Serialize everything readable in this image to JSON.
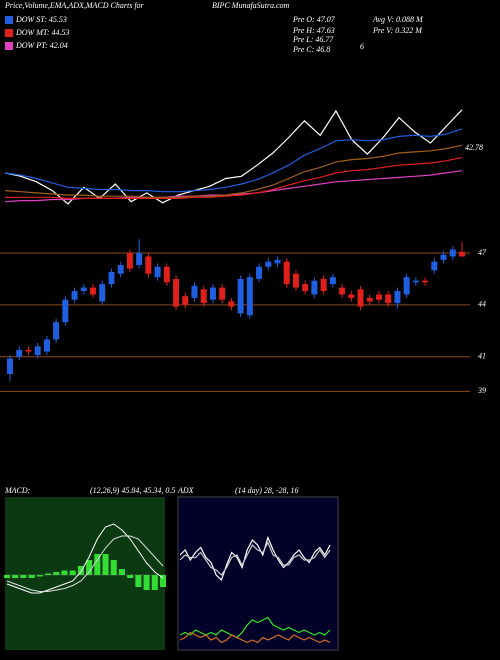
{
  "chart_data": [
    {
      "type": "line",
      "title": "Price,Volume,EMA,ADX,MACD Charts for",
      "subtitle": "BIPC MunafaSutra.com",
      "legend": [
        {
          "label": "DOW ST: 45.53",
          "color": "#1f5fe0"
        },
        {
          "label": "DOW MT: 44.53",
          "color": "#e0201b"
        },
        {
          "label": "DOW PT: 42.04",
          "color": "#e040c0"
        }
      ],
      "stats": [
        "Pre O: 47.07",
        "Pre H: 47.63",
        "Pre L: 46.77",
        "Pre C: 46.8",
        "Avg V: 0.088 M",
        "Pre V: 0.322 M",
        "6"
      ],
      "annotation": "42.78",
      "ylim": [
        35,
        49
      ],
      "series": [
        {
          "name": "Price",
          "color": "#ffffff",
          "values": [
            38.8,
            38.5,
            38.0,
            37.2,
            36.0,
            37.5,
            36.5,
            37.8,
            36.2,
            37.0,
            36.1,
            36.8,
            37.2,
            37.6,
            38.3,
            38.5,
            39.5,
            40.6,
            42.0,
            43.5,
            42.2,
            44.4,
            41.8,
            40.5,
            42.0,
            43.8,
            42.5,
            41.5,
            43.0,
            44.5
          ]
        },
        {
          "name": "EMA pink",
          "color": "#e040c0",
          "values": [
            36.2,
            36.3,
            36.3,
            36.4,
            36.4,
            36.5,
            36.5,
            36.5,
            36.6,
            36.6,
            36.6,
            36.7,
            36.7,
            36.8,
            36.8,
            36.9,
            37.0,
            37.2,
            37.4,
            37.6,
            37.8,
            38.0,
            38.1,
            38.2,
            38.3,
            38.4,
            38.5,
            38.6,
            38.8,
            39.0
          ]
        },
        {
          "name": "EMA red",
          "color": "#e0201b",
          "values": [
            36.6,
            36.6,
            36.6,
            36.6,
            36.5,
            36.5,
            36.5,
            36.5,
            36.5,
            36.5,
            36.5,
            36.5,
            36.6,
            36.6,
            36.7,
            36.8,
            37.0,
            37.3,
            37.7,
            38.1,
            38.4,
            38.8,
            39.0,
            39.1,
            39.3,
            39.5,
            39.6,
            39.7,
            39.9,
            40.2
          ]
        },
        {
          "name": "EMA brown",
          "color": "#a0601a",
          "values": [
            37.2,
            37.1,
            37.0,
            36.9,
            36.8,
            36.8,
            36.7,
            36.7,
            36.7,
            36.6,
            36.6,
            36.6,
            36.7,
            36.7,
            36.8,
            37.0,
            37.3,
            37.7,
            38.3,
            38.9,
            39.3,
            39.8,
            40.0,
            40.1,
            40.3,
            40.6,
            40.7,
            40.8,
            41.0,
            41.3
          ]
        },
        {
          "name": "EMA blue",
          "color": "#1f5fe0",
          "values": [
            38.8,
            38.6,
            38.3,
            37.9,
            37.5,
            37.4,
            37.3,
            37.3,
            37.2,
            37.2,
            37.1,
            37.1,
            37.2,
            37.3,
            37.5,
            37.8,
            38.2,
            38.8,
            39.5,
            40.4,
            41.0,
            41.7,
            41.8,
            41.7,
            41.8,
            42.1,
            42.2,
            42.1,
            42.3,
            42.78
          ]
        }
      ]
    },
    {
      "type": "candlestick",
      "up_color": "#1f5fe0",
      "down_color": "#e0201b",
      "grid_color": "#8b4a1a",
      "ylim": [
        38.5,
        47.75
      ],
      "yticks": [
        47,
        44,
        41,
        39
      ],
      "open": [
        40.0,
        41.0,
        41.4,
        41.1,
        41.3,
        42.0,
        43.0,
        44.3,
        44.8,
        45.0,
        44.2,
        45.2,
        45.8,
        47.0,
        46.3,
        46.8,
        45.6,
        46.2,
        45.5,
        44.5,
        44.4,
        44.9,
        44.3,
        45.0,
        44.2,
        43.5,
        43.4,
        45.5,
        46.2,
        46.4,
        46.5,
        45.8,
        45.2,
        44.6,
        45.5,
        45.2,
        45.0,
        44.6,
        44.9,
        44.4,
        44.6,
        44.6,
        44.1,
        44.6,
        45.3,
        45.4,
        46.0,
        46.6,
        46.8,
        47.07
      ],
      "high": [
        41.1,
        41.6,
        41.6,
        41.8,
        42.2,
        43.2,
        44.5,
        45.0,
        45.2,
        45.2,
        45.4,
        46.1,
        46.5,
        47.2,
        47.8,
        47.0,
        46.4,
        46.4,
        45.7,
        44.7,
        45.3,
        45.1,
        45.2,
        45.2,
        44.4,
        45.7,
        45.8,
        46.4,
        46.7,
        46.8,
        46.7,
        46.0,
        45.4,
        45.6,
        45.7,
        45.8,
        45.2,
        44.8,
        45.1,
        44.6,
        44.8,
        44.8,
        45.0,
        45.8,
        45.6,
        45.6,
        46.7,
        47.1,
        47.4,
        47.63
      ],
      "low": [
        39.6,
        40.8,
        41.1,
        40.9,
        41.1,
        41.8,
        42.8,
        44.1,
        44.6,
        44.4,
        44.0,
        45.0,
        45.6,
        45.9,
        46.1,
        45.6,
        45.4,
        45.1,
        43.7,
        43.8,
        44.2,
        43.9,
        44.1,
        44.1,
        43.7,
        43.3,
        43.2,
        45.3,
        46.0,
        46.2,
        45.0,
        44.8,
        44.6,
        44.4,
        44.6,
        45.0,
        44.4,
        44.2,
        43.7,
        44.0,
        44.1,
        43.9,
        43.8,
        44.4,
        45.1,
        45.1,
        45.8,
        46.4,
        46.6,
        46.77
      ],
      "close": [
        40.9,
        41.4,
        41.3,
        41.6,
        42.0,
        43.0,
        44.3,
        44.8,
        45.0,
        44.6,
        45.2,
        45.9,
        46.3,
        46.1,
        47.0,
        45.8,
        46.2,
        45.3,
        43.9,
        44.0,
        45.1,
        44.1,
        45.0,
        44.3,
        43.9,
        45.5,
        45.6,
        46.2,
        46.5,
        46.6,
        45.2,
        45.0,
        44.8,
        45.4,
        44.8,
        45.6,
        44.6,
        44.4,
        43.9,
        44.2,
        44.3,
        44.1,
        44.8,
        45.6,
        45.4,
        45.3,
        46.5,
        46.9,
        47.2,
        46.8
      ]
    },
    {
      "type": "macd",
      "title": "MACD:",
      "subtitle": "(12,26,9) 45.84, 45.34, 0.5",
      "ylim": [
        -2.5,
        2.5
      ],
      "hist_color": "#33dd33",
      "histogram": [
        -0.1,
        -0.1,
        -0.1,
        -0.1,
        -0.05,
        0.05,
        0.1,
        0.15,
        0.15,
        0.3,
        0.5,
        0.7,
        0.7,
        0.5,
        0.2,
        -0.1,
        -0.4,
        -0.5,
        -0.5,
        -0.4
      ],
      "series": [
        {
          "name": "MACD",
          "color": "#ffffff",
          "values": [
            -0.3,
            -0.4,
            -0.5,
            -0.6,
            -0.6,
            -0.5,
            -0.4,
            -0.3,
            -0.2,
            0.1,
            0.6,
            1.2,
            1.6,
            1.7,
            1.5,
            1.2,
            0.8,
            0.4,
            0.1,
            -0.1
          ]
        },
        {
          "name": "Signal",
          "color": "#dddddd",
          "values": [
            -0.2,
            -0.3,
            -0.4,
            -0.5,
            -0.55,
            -0.55,
            -0.5,
            -0.45,
            -0.35,
            -0.2,
            0.1,
            0.5,
            0.9,
            1.2,
            1.3,
            1.3,
            1.2,
            0.9,
            0.6,
            0.3
          ]
        }
      ]
    },
    {
      "type": "adx",
      "title": "ADX",
      "subtitle": "(14 day) 28, -28, 16",
      "ylim": [
        0,
        60
      ],
      "series": [
        {
          "name": "DI+",
          "color": "#ffffff",
          "values": [
            38,
            40,
            36,
            39,
            41,
            37,
            35,
            30,
            28,
            34,
            39,
            37,
            33,
            40,
            44,
            42,
            38,
            45,
            40,
            36,
            33,
            35,
            38,
            40,
            37,
            35,
            39,
            41,
            38,
            42
          ]
        },
        {
          "name": "DI-",
          "color": "#cccccc",
          "values": [
            36,
            38,
            37,
            37,
            39,
            36,
            33,
            32,
            30,
            33,
            37,
            38,
            34,
            38,
            42,
            40,
            39,
            43,
            38,
            37,
            34,
            34,
            37,
            38,
            36,
            36,
            37,
            40,
            37,
            40
          ]
        },
        {
          "name": "ADX",
          "color": "#22ee22",
          "values": [
            6,
            7,
            6,
            8,
            7,
            6,
            7,
            6,
            8,
            7,
            6,
            5,
            7,
            10,
            12,
            11,
            12,
            13,
            10,
            9,
            8,
            9,
            8,
            7,
            8,
            7,
            6,
            7,
            6,
            8
          ]
        },
        {
          "name": "Trend",
          "color": "#e07020",
          "values": [
            4,
            5,
            7,
            6,
            5,
            6,
            4,
            5,
            3,
            4,
            6,
            5,
            4,
            3,
            4,
            3,
            5,
            4,
            5,
            6,
            5,
            4,
            6,
            5,
            4,
            5,
            4,
            3,
            4,
            3
          ]
        }
      ]
    }
  ]
}
